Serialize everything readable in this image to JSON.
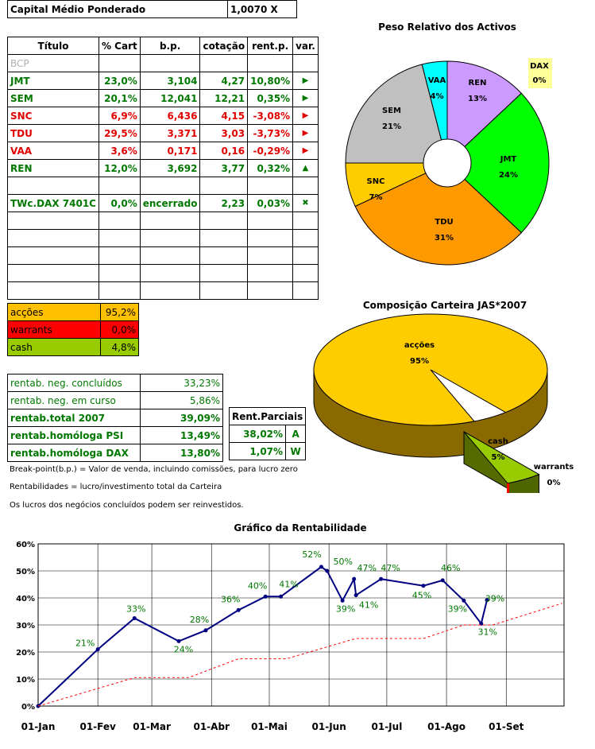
{
  "capital": {
    "label": "Capital Médio Ponderado",
    "value": "1,0070 X"
  },
  "portfolio": {
    "headers": [
      "Título",
      "% Cart",
      "b.p.",
      "cotação",
      "rent.p.",
      "var."
    ],
    "rows": [
      {
        "titulo": "BCP",
        "cart": "",
        "bp": "",
        "cot": "",
        "rent": "",
        "var": "",
        "color": "grey"
      },
      {
        "titulo": "JMT",
        "cart": "23,0%",
        "bp": "3,104",
        "cot": "4,27",
        "rent": "10,80%",
        "var": "▶",
        "color": "green"
      },
      {
        "titulo": "SEM",
        "cart": "20,1%",
        "bp": "12,041",
        "cot": "12,21",
        "rent": "0,35%",
        "var": "▶",
        "color": "green"
      },
      {
        "titulo": "SNC",
        "cart": "6,9%",
        "bp": "6,436",
        "cot": "4,15",
        "rent": "-3,08%",
        "var": "▶",
        "color": "red"
      },
      {
        "titulo": "TDU",
        "cart": "29,5%",
        "bp": "3,371",
        "cot": "3,03",
        "rent": "-3,73%",
        "var": "▶",
        "color": "red"
      },
      {
        "titulo": "VAA",
        "cart": "3,6%",
        "bp": "0,171",
        "cot": "0,16",
        "rent": "-0,29%",
        "var": "▶",
        "color": "red"
      },
      {
        "titulo": "REN",
        "cart": "12,0%",
        "bp": "3,692",
        "cot": "3,77",
        "rent": "0,32%",
        "var": "▲",
        "color": "green"
      },
      {
        "titulo": "",
        "cart": "",
        "bp": "",
        "cot": "",
        "rent": "",
        "var": "",
        "color": ""
      },
      {
        "titulo": "TWc.DAX 7401C",
        "cart": "0,0%",
        "bp": "encerrado",
        "cot": "2,23",
        "rent": "0,03%",
        "var": "✖",
        "color": "green"
      },
      {
        "titulo": "",
        "cart": "",
        "bp": "",
        "cot": "",
        "rent": "",
        "var": "",
        "color": ""
      },
      {
        "titulo": "",
        "cart": "",
        "bp": "",
        "cot": "",
        "rent": "",
        "var": "",
        "color": ""
      },
      {
        "titulo": "",
        "cart": "",
        "bp": "",
        "cot": "",
        "rent": "",
        "var": "",
        "color": ""
      },
      {
        "titulo": "",
        "cart": "",
        "bp": "",
        "cot": "",
        "rent": "",
        "var": "",
        "color": ""
      },
      {
        "titulo": "",
        "cart": "",
        "bp": "",
        "cot": "",
        "rent": "",
        "var": "",
        "color": ""
      }
    ]
  },
  "composition": [
    {
      "label": "acções",
      "value": "95,2%",
      "color": "#ffc000"
    },
    {
      "label": "warrants",
      "value": "0,0%",
      "color": "#ff0000"
    },
    {
      "label": "cash",
      "value": "4,8%",
      "color": "#99cc00"
    }
  ],
  "rentab": [
    {
      "label": "rentab. neg. concluídos",
      "value": "33,23%",
      "bold": false
    },
    {
      "label": "rentab. neg. em curso",
      "value": "5,86%",
      "bold": false
    },
    {
      "label": "rentab.total 2007",
      "value": "39,09%",
      "bold": true
    },
    {
      "label": "rentab.homóloga PSI",
      "value": "13,49%",
      "bold": true
    },
    {
      "label": "rentab.homóloga DAX",
      "value": "13,80%",
      "bold": true
    }
  ],
  "parciais": {
    "header": "Rent.Parciais",
    "rows": [
      {
        "value": "38,02%",
        "code": "A"
      },
      {
        "value": "1,07%",
        "code": "W"
      }
    ]
  },
  "notes": [
    "Break-point(b.p.) = Valor de venda, incluindo comissões, para lucro zero",
    "Rentabilidades = lucro/investimento total da Carteira",
    "Os lucros dos negócios concluídos podem ser reinvestidos."
  ],
  "chart_data": [
    {
      "type": "pie",
      "title": "Peso Relativo dos Activos",
      "donut": true,
      "slices": [
        {
          "label": "REN",
          "pct": 13,
          "color": "#cc99ff"
        },
        {
          "label": "JMT",
          "pct": 24,
          "color": "#00ff00"
        },
        {
          "label": "TDU",
          "pct": 31,
          "color": "#ff9900"
        },
        {
          "label": "SNC",
          "pct": 7,
          "color": "#ffcc00"
        },
        {
          "label": "SEM",
          "pct": 21,
          "color": "#c0c0c0"
        },
        {
          "label": "VAA",
          "pct": 4,
          "color": "#00ffff"
        },
        {
          "label": "DAX",
          "pct": 0,
          "color": "#ffff99"
        }
      ]
    },
    {
      "type": "pie",
      "title": "Composição Carteira JAS*2007",
      "style": "3d-exploded",
      "slices": [
        {
          "label": "acções",
          "pct": 95,
          "color": "#ffcc00"
        },
        {
          "label": "cash",
          "pct": 5,
          "color": "#99cc00"
        },
        {
          "label": "warrants",
          "pct": 0,
          "color": "#ff0000"
        }
      ]
    },
    {
      "type": "line",
      "title": "Gráfico da Rentabilidade",
      "x_ticks": [
        "01-Jan",
        "01-Fev",
        "01-Mar",
        "01-Abr",
        "01-Mai",
        "01-Jun",
        "01-Jul",
        "01-Ago",
        "01-Set"
      ],
      "y_ticks": [
        "0%",
        "10%",
        "20%",
        "30%",
        "40%",
        "50%",
        "60%"
      ],
      "ylim": [
        0,
        60
      ],
      "grid": true,
      "series": [
        {
          "color": "#000080",
          "points": [
            {
              "x": "2007-01-01",
              "y": 0,
              "label": ""
            },
            {
              "x": "2007-02-01",
              "y": 21,
              "label": "21%"
            },
            {
              "x": "2007-02-20",
              "y": 32.5,
              "label": "33%"
            },
            {
              "x": "2007-03-15",
              "y": 24,
              "label": "24%"
            },
            {
              "x": "2007-03-29",
              "y": 28,
              "label": "28%"
            },
            {
              "x": "2007-04-15",
              "y": 35.5,
              "label": "36%"
            },
            {
              "x": "2007-04-29",
              "y": 40.5,
              "label": "40%"
            },
            {
              "x": "2007-05-07",
              "y": 40.5,
              "label": "41%"
            },
            {
              "x": "2007-05-28",
              "y": 51.5,
              "label": "52%"
            },
            {
              "x": "2007-05-31",
              "y": 50,
              "label": "50%"
            },
            {
              "x": "2007-06-08",
              "y": 39,
              "label": "39%"
            },
            {
              "x": "2007-06-14",
              "y": 47,
              "label": "47%"
            },
            {
              "x": "2007-06-15",
              "y": 41,
              "label": "41%"
            },
            {
              "x": "2007-06-28",
              "y": 47,
              "label": "47%"
            },
            {
              "x": "2007-07-20",
              "y": 44.5,
              "label": "45%"
            },
            {
              "x": "2007-07-30",
              "y": 46.5,
              "label": "46%"
            },
            {
              "x": "2007-08-10",
              "y": 39,
              "label": "39%"
            },
            {
              "x": "2007-08-19",
              "y": 30.5,
              "label": "31%"
            },
            {
              "x": "2007-08-22",
              "y": 39.2,
              "label": "39%"
            }
          ]
        },
        {
          "color": "#ff0000",
          "dashed": true,
          "points": [
            {
              "x": "2007-01-01",
              "y": 0
            },
            {
              "x": "2007-02-20",
              "y": 10.5
            },
            {
              "x": "2007-03-20",
              "y": 10.5
            },
            {
              "x": "2007-04-15",
              "y": 17.5
            },
            {
              "x": "2007-05-10",
              "y": 17.5
            },
            {
              "x": "2007-06-15",
              "y": 25
            },
            {
              "x": "2007-07-20",
              "y": 25
            },
            {
              "x": "2007-08-10",
              "y": 30
            },
            {
              "x": "2007-08-25",
              "y": 30
            },
            {
              "x": "2007-09-30",
              "y": 38
            }
          ]
        }
      ]
    }
  ]
}
